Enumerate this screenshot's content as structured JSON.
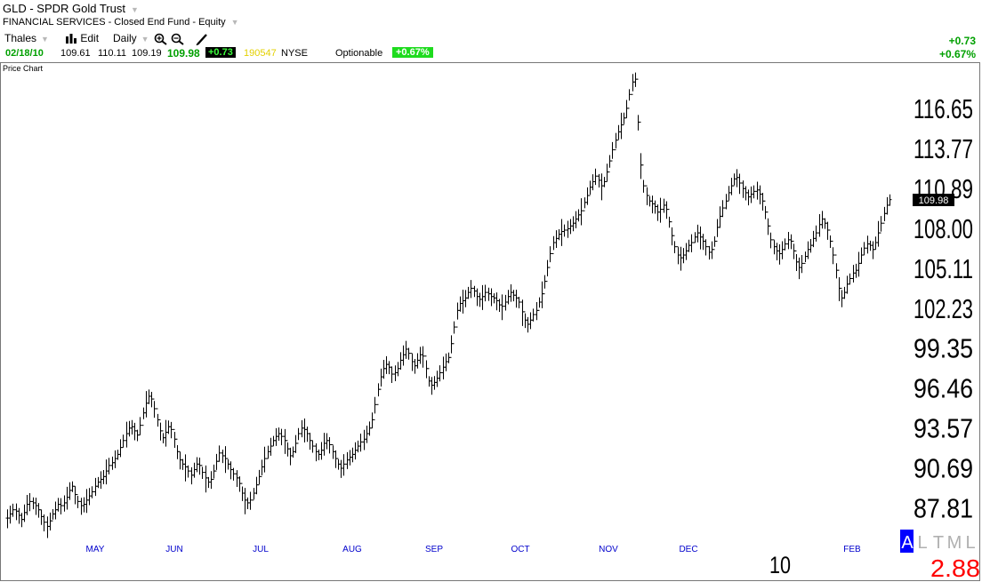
{
  "header": {
    "title": "GLD - SPDR Gold Trust",
    "subtitle": "FINANCIAL SERVICES - Closed End Fund - Equity",
    "toolbar": {
      "account": "Thales",
      "edit": "Edit",
      "period": "Daily"
    },
    "quote": {
      "date": "02/18/10",
      "open": "109.61",
      "high": "110.11",
      "low": "109.19",
      "close": "109.98",
      "change": "+0.73",
      "volume": "190547",
      "exchange": "NYSE",
      "optionable": "Optionable",
      "pct": "+0.67%"
    },
    "right_change": "+0.73",
    "right_pct": "+0.67%"
  },
  "colors": {
    "up": "#00a000",
    "highlight": "#1edb1e",
    "month_label": "#0000cc",
    "value": "#ff0000"
  },
  "chart_data": {
    "type": "ohlc",
    "title": "Price Chart",
    "ylim": [
      85.4,
      119.8
    ],
    "y_ticks": [
      "116.65",
      "113.77",
      "110.89",
      "108.00",
      "105.11",
      "102.23",
      "99.35",
      "96.46",
      "93.57",
      "90.69",
      "87.81"
    ],
    "month_labels": [
      "MAY",
      "JUN",
      "JUL",
      "AUG",
      "SEP",
      "OCT",
      "NOV",
      "DEC",
      "FEB"
    ],
    "year_label": "10",
    "last_price_label": "109.98",
    "last_price": 109.98,
    "bottom_right": {
      "letters": [
        "A",
        "L",
        "T",
        "M",
        "L"
      ],
      "value": "2.88"
    },
    "series": [
      {
        "name": "GLD",
        "values": [
          87.0,
          87.3,
          87.6,
          87.5,
          87.2,
          86.9,
          87.4,
          88.0,
          88.2,
          88.1,
          87.9,
          87.6,
          87.1,
          86.7,
          86.4,
          86.8,
          87.3,
          87.6,
          88.0,
          87.9,
          88.1,
          88.5,
          89.0,
          89.3,
          88.7,
          88.2,
          87.9,
          88.0,
          88.3,
          88.6,
          88.9,
          89.3,
          89.6,
          89.8,
          90.0,
          90.4,
          90.8,
          91.0,
          91.3,
          91.6,
          92.1,
          92.6,
          93.1,
          93.5,
          93.6,
          93.3,
          93.0,
          93.7,
          94.6,
          95.3,
          95.8,
          95.6,
          94.9,
          94.1,
          93.3,
          92.8,
          93.2,
          93.6,
          93.4,
          92.7,
          91.8,
          91.2,
          90.9,
          90.7,
          90.4,
          90.1,
          90.5,
          90.9,
          90.8,
          90.3,
          89.9,
          89.6,
          89.8,
          90.4,
          91.1,
          91.7,
          91.5,
          91.3,
          90.9,
          90.5,
          90.2,
          89.9,
          89.5,
          88.8,
          88.3,
          88.1,
          88.3,
          88.8,
          89.4,
          90.0,
          90.7,
          91.3,
          91.8,
          92.2,
          92.6,
          92.9,
          93.1,
          92.9,
          92.6,
          92.0,
          91.5,
          91.8,
          92.4,
          93.1,
          93.5,
          93.4,
          93.1,
          92.6,
          92.2,
          91.8,
          91.6,
          91.9,
          92.4,
          92.6,
          92.3,
          91.8,
          91.3,
          90.9,
          90.6,
          90.9,
          91.2,
          91.4,
          91.6,
          91.9,
          92.2,
          92.5,
          92.7,
          93.1,
          93.5,
          94.1,
          95.2,
          96.3,
          97.2,
          97.8,
          98.1,
          97.9,
          97.4,
          97.5,
          97.8,
          98.4,
          98.8,
          99.2,
          98.9,
          98.3,
          98.0,
          98.4,
          98.8,
          98.7,
          97.8,
          96.9,
          96.6,
          96.8,
          97.1,
          97.5,
          97.9,
          98.3,
          98.6,
          99.6,
          100.8,
          102.0,
          102.5,
          102.7,
          102.9,
          103.3,
          103.6,
          103.4,
          103.0,
          102.8,
          103.0,
          103.3,
          103.2,
          103.0,
          102.9,
          102.7,
          102.4,
          102.3,
          102.6,
          103.0,
          103.3,
          103.1,
          102.9,
          102.6,
          101.9,
          101.3,
          101.0,
          101.3,
          101.7,
          102.0,
          102.6,
          103.2,
          104.1,
          105.1,
          106.1,
          106.9,
          107.2,
          107.5,
          107.7,
          107.8,
          107.9,
          108.1,
          108.3,
          108.6,
          108.9,
          109.2,
          109.8,
          110.3,
          110.9,
          111.3,
          111.7,
          111.4,
          111.0,
          111.3,
          112.0,
          112.8,
          113.6,
          114.3,
          114.9,
          115.4,
          115.9,
          116.6,
          117.6,
          118.5,
          118.7,
          115.6,
          112.5,
          111.0,
          110.3,
          109.9,
          109.7,
          109.5,
          109.1,
          109.3,
          109.6,
          109.3,
          108.4,
          107.4,
          106.6,
          106.0,
          105.8,
          106.0,
          106.3,
          106.7,
          106.9,
          107.3,
          107.6,
          107.3,
          107.0,
          106.6,
          106.2,
          106.4,
          107.0,
          108.0,
          108.8,
          109.4,
          109.9,
          110.5,
          111.0,
          111.5,
          111.6,
          111.2,
          110.8,
          110.5,
          110.2,
          110.4,
          110.6,
          110.7,
          110.4,
          109.9,
          109.1,
          108.1,
          107.1,
          106.6,
          106.3,
          106.1,
          106.4,
          106.8,
          107.1,
          107.0,
          106.3,
          105.5,
          105.1,
          105.4,
          105.9,
          106.4,
          106.7,
          107.2,
          107.6,
          108.2,
          108.6,
          108.3,
          107.8,
          107.0,
          106.0,
          104.9,
          103.6,
          102.9,
          103.3,
          103.9,
          104.3,
          104.7,
          104.9,
          105.4,
          106.0,
          106.5,
          106.8,
          106.7,
          106.4,
          106.9,
          107.6,
          108.3,
          109.0,
          109.6,
          110.0
        ]
      }
    ]
  }
}
